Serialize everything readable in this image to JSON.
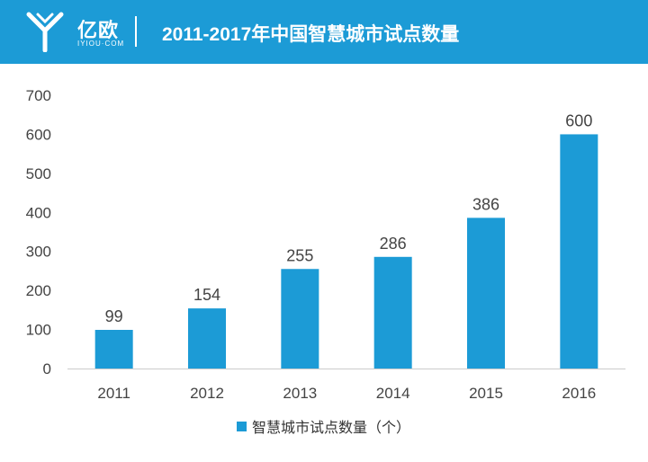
{
  "header": {
    "logo_text": "亿欧",
    "logo_sub": "IYIOU·COM",
    "title": "2011-2017年中国智慧城市试点数量"
  },
  "colors": {
    "accent": "#1c9bd6"
  },
  "chart_data": {
    "type": "bar",
    "title": "2011-2017年中国智慧城市试点数量",
    "categories": [
      "2011",
      "2012",
      "2013",
      "2014",
      "2015",
      "2016"
    ],
    "series": [
      {
        "name": "智慧城市试点数量（个）",
        "values": [
          99,
          154,
          255,
          286,
          386,
          600
        ]
      }
    ],
    "ylim": [
      0,
      700
    ],
    "yticks": [
      0,
      100,
      200,
      300,
      400,
      500,
      600,
      700
    ],
    "grid": false,
    "legend": "bottom",
    "xlabel": "",
    "ylabel": ""
  }
}
